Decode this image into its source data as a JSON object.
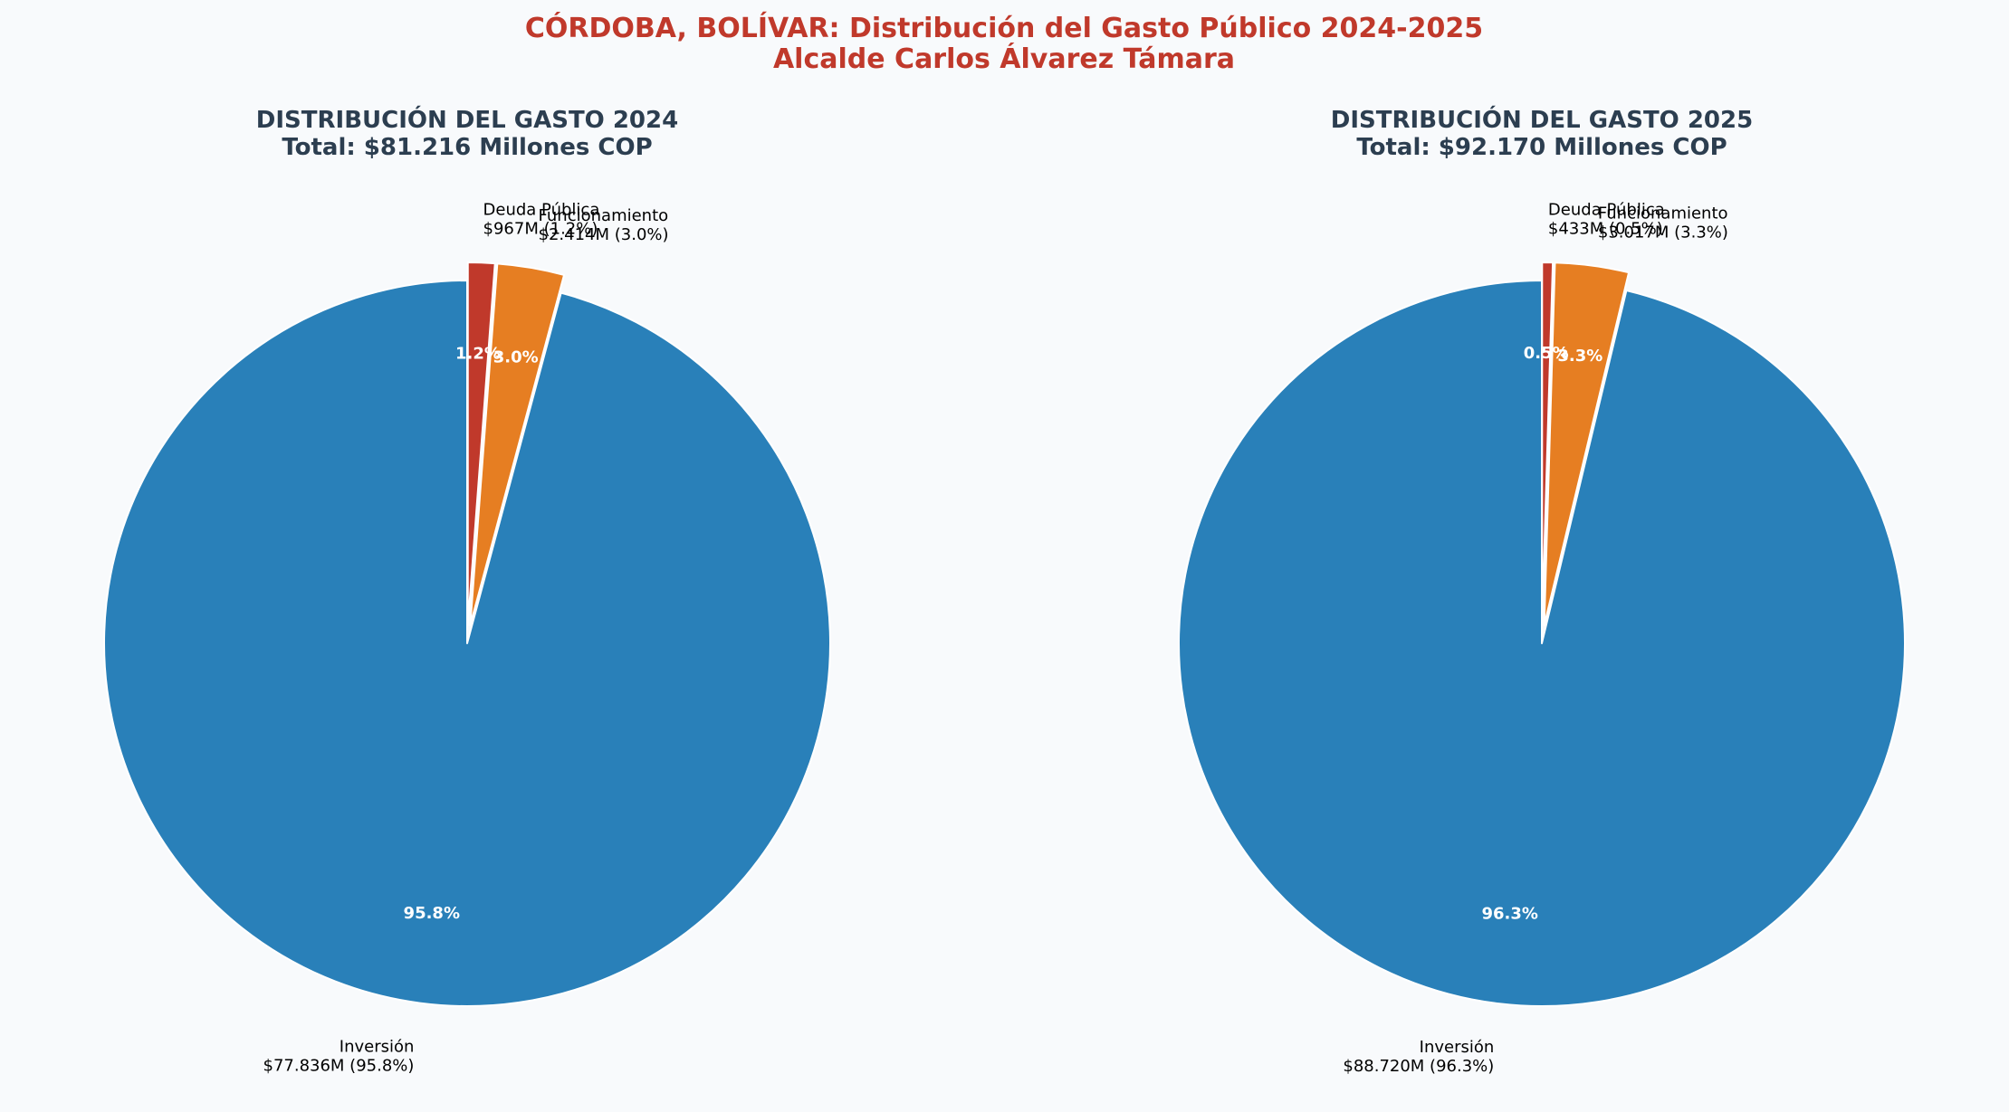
{
  "figure": {
    "title_line1": "CÓRDOBA, BOLÍVAR: Distribución del Gasto Público 2024-2025",
    "title_line2": "Alcalde Carlos Álvarez Támara"
  },
  "colors": {
    "background": "#f8fafc",
    "title": "#c0392b",
    "subtitle": "#2c3e50",
    "inversion": "#2980b9",
    "funcionamiento": "#e67e22",
    "deuda": "#c0392b",
    "edge": "#ffffff",
    "pct_text": "#ffffff",
    "label_text": "#000000"
  },
  "chart_data": [
    {
      "type": "pie",
      "title_line1": "DISTRIBUCIÓN DEL GASTO 2024",
      "title_line2": "Total: $81.216 Millones COP",
      "start_angle_deg": 90,
      "direction": "clockwise",
      "slices": [
        {
          "key": "deuda",
          "name": "Deuda Pública",
          "value": 967,
          "percent": 1.2,
          "pct_label": "1.2%",
          "label_line1": "Deuda Pública",
          "label_line2": "$967M (1.2%)",
          "color": "#c0392b",
          "exploded": true
        },
        {
          "key": "funcionamiento",
          "name": "Funcionamiento",
          "value": 2414,
          "percent": 3.0,
          "pct_label": "3.0%",
          "label_line1": "Funcionamiento",
          "label_line2": "$2.414M (3.0%)",
          "color": "#e67e22",
          "exploded": true
        },
        {
          "key": "inversion",
          "name": "Inversión",
          "value": 77836,
          "percent": 95.8,
          "pct_label": "95.8%",
          "label_line1": "Inversión",
          "label_line2": "$77.836M (95.8%)",
          "color": "#2980b9",
          "exploded": false
        }
      ]
    },
    {
      "type": "pie",
      "title_line1": "DISTRIBUCIÓN DEL GASTO 2025",
      "title_line2": "Total: $92.170 Millones COP",
      "start_angle_deg": 90,
      "direction": "clockwise",
      "slices": [
        {
          "key": "deuda",
          "name": "Deuda Pública",
          "value": 433,
          "percent": 0.5,
          "pct_label": "0.5%",
          "label_line1": "Deuda Pública",
          "label_line2": "$433M (0.5%)",
          "color": "#c0392b",
          "exploded": true
        },
        {
          "key": "funcionamiento",
          "name": "Funcionamiento",
          "value": 3017,
          "percent": 3.3,
          "pct_label": "3.3%",
          "label_line1": "Funcionamiento",
          "label_line2": "$3.017M (3.3%)",
          "color": "#e67e22",
          "exploded": true
        },
        {
          "key": "inversion",
          "name": "Inversión",
          "value": 88720,
          "percent": 96.3,
          "pct_label": "96.3%",
          "label_line1": "Inversión",
          "label_line2": "$88.720M (96.3%)",
          "color": "#2980b9",
          "exploded": false
        }
      ]
    }
  ]
}
